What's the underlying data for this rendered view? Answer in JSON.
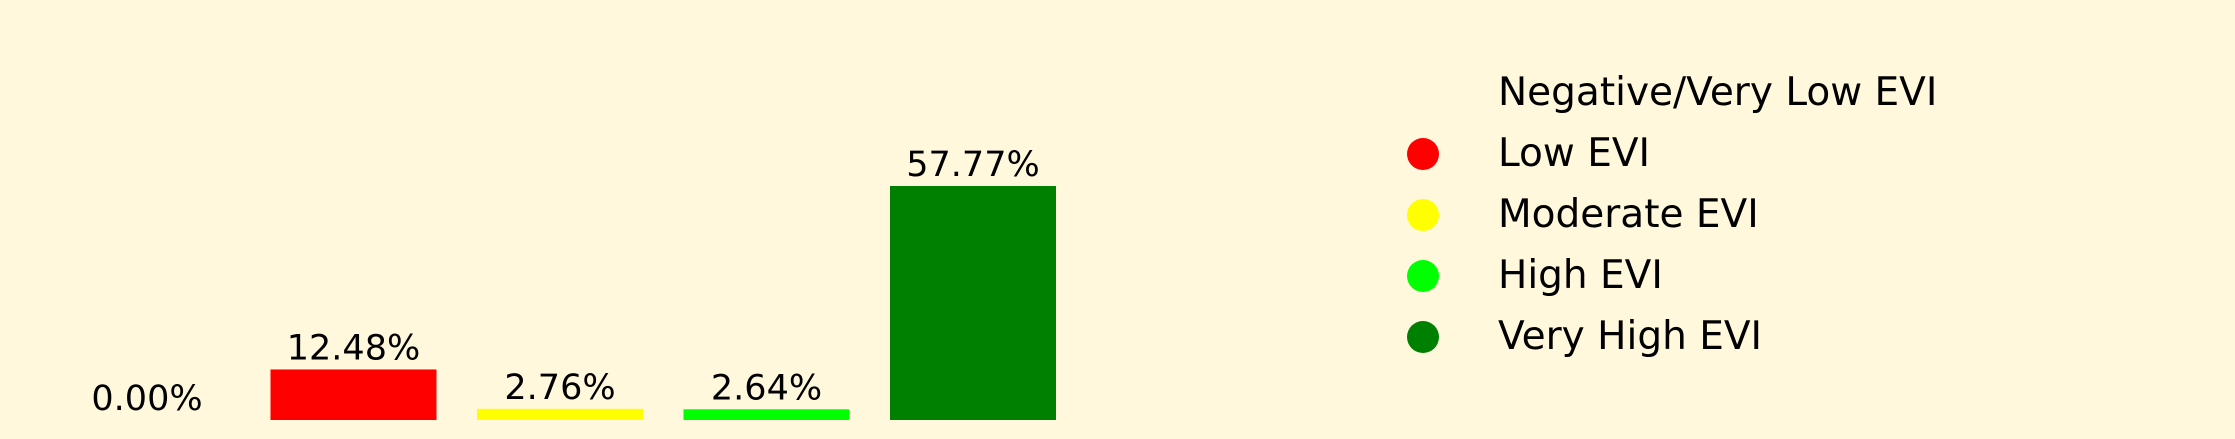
{
  "background": "#fff8dc",
  "chart_data": {
    "type": "bar",
    "title": "",
    "xlabel": "",
    "ylabel": "",
    "categories": [
      "Negative/Very Low EVI",
      "Low EVI",
      "Moderate EVI",
      "High EVI",
      "Very High EVI"
    ],
    "values": [
      0.0,
      12.48,
      2.76,
      2.64,
      57.77
    ],
    "value_labels": [
      "0.00%",
      "12.48%",
      "2.76%",
      "2.64%",
      "57.77%"
    ],
    "colors": [
      "#fff8dc",
      "#ff0000",
      "#ffff00",
      "#00ff00",
      "#008000"
    ],
    "ylim": [
      0,
      58
    ],
    "grid": false,
    "axes_visible": false,
    "legend": {
      "position": "right",
      "marker": "circle",
      "entries": [
        {
          "label": "Negative/Very Low EVI",
          "color": "#fff8dc"
        },
        {
          "label": "Low EVI",
          "color": "#ff0000"
        },
        {
          "label": "Moderate EVI",
          "color": "#ffff00"
        },
        {
          "label": "High EVI",
          "color": "#00ff00"
        },
        {
          "label": "Very High EVI",
          "color": "#008000"
        }
      ]
    }
  }
}
